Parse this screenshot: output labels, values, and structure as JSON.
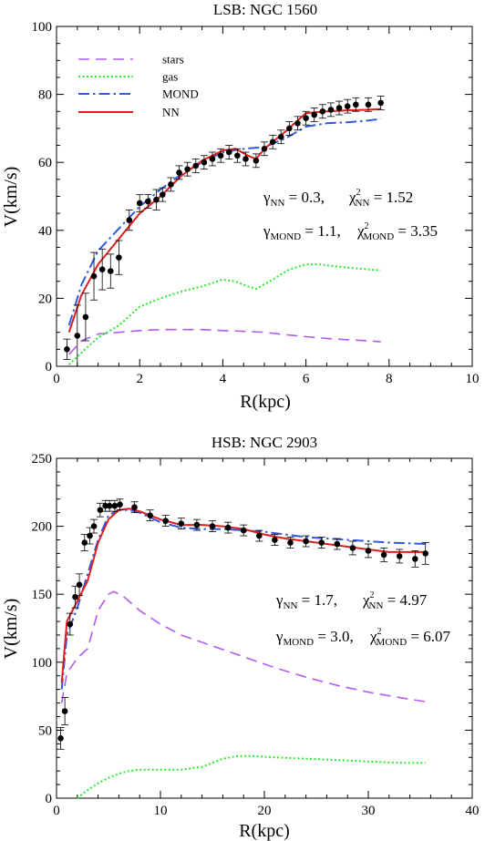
{
  "chart_data": [
    {
      "type": "line",
      "title": "LSB: NGC 1560",
      "xlabel": "R(kpc)",
      "ylabel": "V(km/s)",
      "xlim": [
        0,
        10
      ],
      "ylim": [
        0,
        100
      ],
      "xticks": [
        0,
        2,
        4,
        6,
        8,
        10
      ],
      "yticks": [
        0,
        20,
        40,
        60,
        80,
        100
      ],
      "legend_position": "top-left",
      "annotations": [
        {
          "main": "γ",
          "sub": "NN",
          "value": " = 0.3,",
          "main2": "χ",
          "sup2": "2",
          "sub2": "NN",
          "value2": " = 1.52"
        },
        {
          "main": "γ",
          "sub": "MOND",
          "value": " = 1.1,",
          "main2": "χ",
          "sup2": "2",
          "sub2": "MOND",
          "value2": " = 3.35"
        }
      ],
      "series": [
        {
          "name": "stars",
          "color": "#b25bf0",
          "style": "dashed",
          "x": [
            0.3,
            0.6,
            1.0,
            1.5,
            2.0,
            2.5,
            3.0,
            3.5,
            4.0,
            4.5,
            5.0,
            5.5,
            6.0,
            6.5,
            7.0,
            7.5,
            7.8
          ],
          "y": [
            3.5,
            7.5,
            9.5,
            10.0,
            10.5,
            10.8,
            10.8,
            10.8,
            10.5,
            10.3,
            10.0,
            9.3,
            8.7,
            8.2,
            7.8,
            7.5,
            7.2
          ]
        },
        {
          "name": "gas",
          "color": "#2ee82e",
          "style": "dotted",
          "x": [
            0.3,
            0.6,
            1.0,
            1.5,
            2.0,
            2.5,
            3.0,
            3.5,
            4.0,
            4.3,
            4.6,
            4.8,
            5.2,
            5.6,
            6.0,
            6.3,
            7.0,
            7.5,
            7.8
          ],
          "y": [
            0.5,
            4.0,
            8.5,
            12.0,
            17.5,
            20.0,
            22.0,
            23.5,
            25.5,
            25.0,
            23.5,
            22.8,
            25.5,
            28.5,
            30.0,
            30.0,
            29.0,
            28.5,
            28.2
          ]
        },
        {
          "name": "MOND",
          "color": "#2f5be0",
          "style": "dashdot",
          "x": [
            0.3,
            0.6,
            1.0,
            1.5,
            2.0,
            2.5,
            3.0,
            3.5,
            4.0,
            4.5,
            5.0,
            5.5,
            6.0,
            6.5,
            7.0,
            7.5,
            7.8
          ],
          "y": [
            12.0,
            24.0,
            34.0,
            40.5,
            47.0,
            52.0,
            56.5,
            60.0,
            63.0,
            64.0,
            64.5,
            67.0,
            70.5,
            71.5,
            71.8,
            72.3,
            72.8
          ]
        },
        {
          "name": "NN",
          "color": "#e01e1e",
          "style": "solid",
          "x": [
            0.3,
            0.6,
            1.0,
            1.5,
            2.0,
            2.5,
            3.0,
            3.5,
            4.0,
            4.3,
            4.6,
            4.8,
            5.0,
            5.5,
            6.0,
            6.5,
            7.0,
            7.5,
            7.8
          ],
          "y": [
            10.0,
            21.0,
            30.0,
            37.5,
            45.0,
            50.0,
            56.0,
            60.5,
            63.5,
            64.0,
            62.0,
            61.0,
            64.0,
            69.0,
            74.5,
            75.0,
            75.3,
            75.5,
            75.7
          ]
        },
        {
          "name": "data",
          "type": "scatter",
          "color": "#000000",
          "x": [
            0.25,
            0.5,
            0.7,
            0.9,
            1.1,
            1.3,
            1.5,
            1.75,
            2.0,
            2.2,
            2.4,
            2.55,
            2.75,
            2.95,
            3.15,
            3.35,
            3.55,
            3.75,
            3.95,
            4.15,
            4.35,
            4.55,
            4.8,
            5.0,
            5.2,
            5.4,
            5.6,
            5.8,
            6.0,
            6.2,
            6.4,
            6.6,
            6.8,
            7.0,
            7.2,
            7.5,
            7.8
          ],
          "y": [
            5.0,
            9.0,
            14.5,
            26.5,
            28.5,
            28.0,
            32.0,
            43.0,
            48.0,
            48.5,
            49.0,
            50.5,
            53.5,
            57.0,
            58.0,
            59.0,
            60.0,
            61.0,
            62.0,
            63.0,
            62.0,
            61.0,
            60.5,
            64.0,
            66.0,
            67.5,
            70.0,
            71.5,
            73.0,
            74.0,
            75.0,
            75.5,
            76.0,
            76.5,
            77.0,
            77.0,
            77.5
          ],
          "err": [
            3,
            9,
            7,
            7,
            6,
            5,
            5,
            3,
            2.5,
            2,
            3,
            2,
            2,
            2,
            2,
            2,
            2,
            2,
            2,
            2,
            2,
            2,
            2,
            2,
            2,
            2,
            2,
            2,
            2,
            2,
            2,
            2,
            2,
            2,
            2,
            2,
            2
          ]
        }
      ]
    },
    {
      "type": "line",
      "title": "HSB: NGC 2903",
      "xlabel": "R(kpc)",
      "ylabel": "V(km/s)",
      "xlim": [
        0,
        40
      ],
      "ylim": [
        0,
        250
      ],
      "xticks": [
        0,
        10,
        20,
        30,
        40
      ],
      "yticks": [
        0,
        50,
        100,
        150,
        200,
        250
      ],
      "annotations": [
        {
          "main": "γ",
          "sub": "NN",
          "value": " = 1.7,",
          "main2": "χ",
          "sup2": "2",
          "sub2": "NN",
          "value2": " = 4.97"
        },
        {
          "main": "γ",
          "sub": "MOND",
          "value": " = 3.0,",
          "main2": "χ",
          "sup2": "2",
          "sub2": "MOND",
          "value2": " = 6.07"
        }
      ],
      "series": [
        {
          "name": "stars",
          "color": "#b25bf0",
          "style": "dashed",
          "x": [
            0.5,
            1.0,
            2.0,
            3.0,
            4.0,
            5.0,
            5.5,
            6.5,
            8.0,
            10.0,
            12.0,
            15.0,
            18.0,
            21.0,
            24.0,
            27.0,
            30.0,
            33.0,
            35.5
          ],
          "y": [
            70,
            92,
            103,
            110,
            138,
            150,
            152,
            148,
            138,
            128,
            120,
            112,
            104,
            96,
            89,
            83,
            78,
            74,
            71
          ]
        },
        {
          "name": "gas",
          "color": "#2ee82e",
          "style": "dotted",
          "x": [
            2.0,
            3.0,
            4.0,
            5.0,
            6.0,
            7.0,
            8.0,
            10.0,
            12.0,
            14.0,
            16.0,
            17.5,
            19.0,
            21.0,
            24.0,
            27.0,
            30.0,
            33.0,
            35.5
          ],
          "y": [
            0,
            6,
            11,
            15,
            18,
            20,
            21,
            21,
            21,
            23,
            29,
            31,
            31,
            30,
            29,
            28,
            27,
            26,
            26
          ]
        },
        {
          "name": "MOND",
          "color": "#2f5be0",
          "style": "dashdot",
          "x": [
            0.5,
            1.0,
            2.0,
            3.0,
            4.0,
            5.0,
            6.0,
            7.0,
            8.0,
            10.0,
            12.0,
            14.0,
            16.0,
            18.0,
            20.0,
            22.0,
            24.0,
            26.0,
            28.0,
            30.0,
            32.0,
            35.5
          ],
          "y": [
            80,
            120,
            140,
            165,
            190,
            208,
            212,
            212,
            210,
            203,
            199,
            198,
            198,
            197,
            196,
            194,
            192,
            191,
            190,
            189,
            188,
            187
          ]
        },
        {
          "name": "NN",
          "color": "#e01e1e",
          "style": "solid",
          "x": [
            0.5,
            1.0,
            2.0,
            3.0,
            4.0,
            5.0,
            6.0,
            7.0,
            8.0,
            10.0,
            12.0,
            14.0,
            16.0,
            18.0,
            20.0,
            22.0,
            24.0,
            26.0,
            28.0,
            30.0,
            32.0,
            35.5
          ],
          "y": [
            85,
            130,
            145,
            160,
            188,
            205,
            212,
            213,
            211,
            205,
            201,
            201,
            200,
            198,
            194,
            191,
            189,
            187,
            185,
            183,
            181,
            181
          ]
        },
        {
          "name": "data",
          "type": "scatter",
          "color": "#000000",
          "x": [
            0.4,
            0.8,
            1.3,
            1.8,
            2.2,
            2.7,
            3.2,
            3.6,
            4.2,
            4.7,
            5.1,
            5.6,
            6.1,
            7.5,
            9.0,
            10.5,
            12.0,
            13.5,
            15.0,
            16.5,
            18.0,
            19.5,
            21.0,
            22.5,
            24.0,
            25.5,
            27.0,
            28.5,
            30.0,
            31.5,
            33.0,
            34.5,
            35.5
          ],
          "y": [
            44,
            64,
            128,
            148,
            157,
            188,
            193,
            200,
            212,
            215,
            215,
            215,
            216,
            214,
            208,
            204,
            202,
            201,
            200,
            199,
            197,
            193,
            190,
            188,
            189,
            188,
            187,
            184,
            182,
            179,
            178,
            176,
            180
          ],
          "err": [
            8,
            10,
            8,
            8,
            8,
            6,
            6,
            5,
            5,
            4,
            4,
            4,
            4,
            4,
            4,
            4,
            4,
            4,
            4,
            4,
            4,
            4,
            4,
            4,
            4,
            4,
            4,
            5,
            5,
            5,
            5,
            6,
            8
          ]
        }
      ]
    }
  ]
}
